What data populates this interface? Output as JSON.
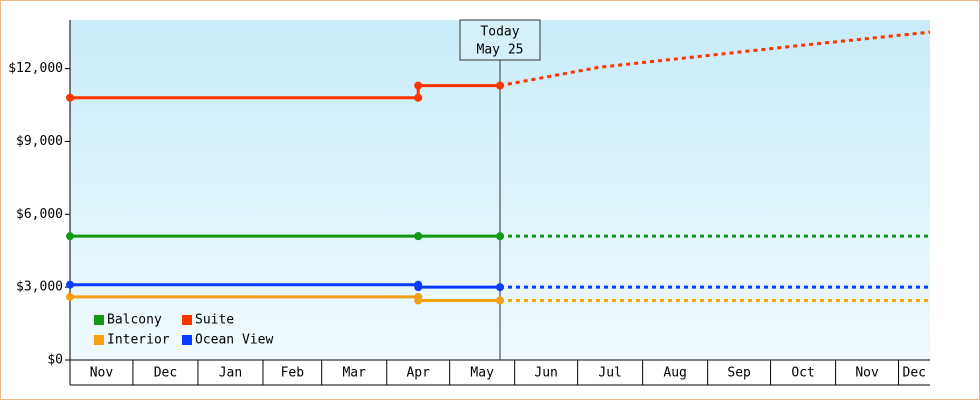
{
  "chart_data": {
    "type": "line",
    "xlim": [
      0,
      410
    ],
    "xticks": [
      {
        "value": 0,
        "label": "Nov"
      },
      {
        "value": 30,
        "label": "Dec"
      },
      {
        "value": 61,
        "label": "Jan"
      },
      {
        "value": 92,
        "label": "Feb"
      },
      {
        "value": 120,
        "label": "Mar"
      },
      {
        "value": 151,
        "label": "Apr"
      },
      {
        "value": 181,
        "label": "May"
      },
      {
        "value": 212,
        "label": "Jun"
      },
      {
        "value": 242,
        "label": "Jul"
      },
      {
        "value": 273,
        "label": "Aug"
      },
      {
        "value": 304,
        "label": "Sep"
      },
      {
        "value": 334,
        "label": "Oct"
      },
      {
        "value": 365,
        "label": "Nov"
      },
      {
        "value": 395,
        "label": "Dec"
      }
    ],
    "ylim": [
      0,
      14000
    ],
    "yticks": [
      {
        "value": 0,
        "label": "$0"
      },
      {
        "value": 3000,
        "label": "$3,000"
      },
      {
        "value": 6000,
        "label": "$6,000"
      },
      {
        "value": 9000,
        "label": "$9,000"
      },
      {
        "value": 12000,
        "label": "$12,000"
      }
    ],
    "grid": false,
    "today": {
      "x": 205,
      "title": "Today",
      "date": "May 25"
    },
    "x": [
      0,
      166,
      166,
      205
    ],
    "forecast_x": [
      205,
      252,
      348,
      410
    ],
    "legend": "bottom-left",
    "series": [
      {
        "name": "Balcony",
        "color": "#119911",
        "values": [
          5100,
          5100,
          5100,
          5100
        ],
        "forecast_values": [
          5100,
          5100,
          5100,
          5100
        ]
      },
      {
        "name": "Suite",
        "color": "#ff3300",
        "values": [
          10800,
          10800,
          11300,
          11300
        ],
        "forecast_values": [
          11300,
          12050,
          12950,
          13500
        ]
      },
      {
        "name": "Interior",
        "color": "#f5a010",
        "values": [
          2600,
          2600,
          2450,
          2450
        ],
        "forecast_values": [
          2450,
          2450,
          2450,
          2450
        ]
      },
      {
        "name": "Ocean View",
        "color": "#0a3cff",
        "values": [
          3100,
          3100,
          3000,
          3000
        ],
        "forecast_values": [
          3000,
          3000,
          3000,
          3000
        ]
      }
    ]
  }
}
